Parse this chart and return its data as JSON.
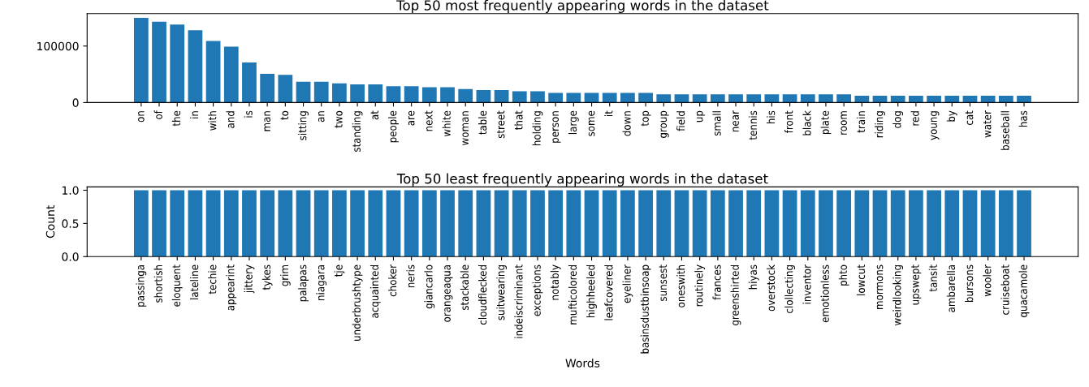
{
  "chart_data": [
    {
      "type": "bar",
      "title": "Top 50 most frequently appearing words in the dataset",
      "categories": [
        "on",
        "of",
        "the",
        "in",
        "with",
        "and",
        "is",
        "man",
        "to",
        "sitting",
        "an",
        "two",
        "standing",
        "at",
        "people",
        "are",
        "next",
        "white",
        "woman",
        "table",
        "street",
        "that",
        "holding",
        "person",
        "large",
        "some",
        "it",
        "down",
        "top",
        "group",
        "field",
        "up",
        "small",
        "near",
        "tennis",
        "his",
        "front",
        "black",
        "plate",
        "room",
        "train",
        "riding",
        "dog",
        "red",
        "young",
        "by",
        "cat",
        "water",
        "baseball",
        "has"
      ],
      "values": [
        150000,
        143000,
        138000,
        128000,
        109000,
        99000,
        71000,
        51000,
        49000,
        37000,
        37000,
        34000,
        32000,
        32000,
        29000,
        29000,
        27000,
        27000,
        24000,
        22000,
        22000,
        20000,
        20000,
        17000,
        17000,
        17000,
        17000,
        17000,
        17000,
        14500,
        14500,
        14500,
        14500,
        14500,
        14500,
        14500,
        14500,
        14500,
        14500,
        14500,
        12000,
        12000,
        12000,
        12000,
        12000,
        12000,
        12000,
        12000,
        12000,
        12000
      ],
      "color": "#1f77b4",
      "ylim": [
        0,
        157500
      ],
      "yticks": [
        0,
        100000
      ],
      "grid": false
    },
    {
      "type": "bar",
      "title": "Top 50 least frequently appearing words in the dataset",
      "xlabel": "Words",
      "ylabel": "Count",
      "categories": [
        "passinga",
        "shortish",
        "eloquent",
        "lateline",
        "techie",
        "appearint",
        "jittery",
        "tykes",
        "grim",
        "palapas",
        "niagara",
        "tje",
        "underbrushtype",
        "acquainted",
        "choker",
        "neris",
        "giancarlo",
        "orangeaqua",
        "stackable",
        "cloudflecked",
        "suitwearing",
        "indeiscriminant",
        "exceptions",
        "notably",
        "mufticolored",
        "highheeled",
        "leafcovered",
        "eyeliner",
        "basinsdustbinsoap",
        "sunsest",
        "oneswith",
        "routinely",
        "frances",
        "greenshirted",
        "hiyas",
        "overstock",
        "clollecting",
        "inventor",
        "emotionless",
        "phto",
        "lowcut",
        "mormons",
        "weirdlooking",
        "upswept",
        "tansit",
        "ambarella",
        "bursons",
        "wooler",
        "cruiseboat",
        "quacamole"
      ],
      "values": [
        1,
        1,
        1,
        1,
        1,
        1,
        1,
        1,
        1,
        1,
        1,
        1,
        1,
        1,
        1,
        1,
        1,
        1,
        1,
        1,
        1,
        1,
        1,
        1,
        1,
        1,
        1,
        1,
        1,
        1,
        1,
        1,
        1,
        1,
        1,
        1,
        1,
        1,
        1,
        1,
        1,
        1,
        1,
        1,
        1,
        1,
        1,
        1,
        1,
        1
      ],
      "color": "#1f77b4",
      "ylim": [
        0,
        1.05
      ],
      "yticks": [
        {
          "value": 0,
          "label": "0.0"
        },
        {
          "value": 0.5,
          "label": "0.5"
        },
        {
          "value": 1,
          "label": "1.0"
        }
      ],
      "grid": false
    }
  ]
}
